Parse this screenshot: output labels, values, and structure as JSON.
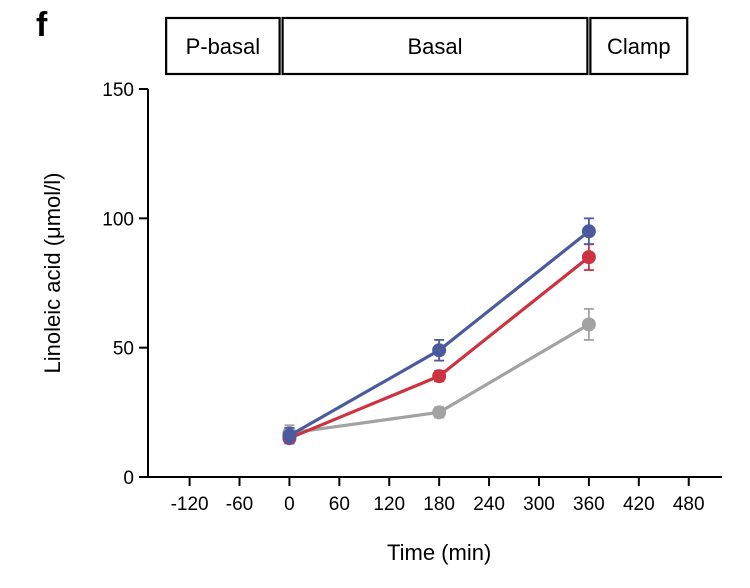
{
  "panel_label": "f",
  "phases": [
    {
      "label": "P-basal",
      "start": -150,
      "end": -10
    },
    {
      "label": "Basal",
      "start": -10,
      "end": 360
    },
    {
      "label": "Clamp",
      "start": 360,
      "end": 480
    }
  ],
  "chart_data": {
    "type": "line",
    "title": "",
    "xlabel": "Time (min)",
    "ylabel": "Linoleic acid (μmol/l)",
    "xlim": [
      -170,
      520
    ],
    "ylim": [
      0,
      150
    ],
    "xticks": [
      -120,
      -60,
      0,
      60,
      120,
      180,
      240,
      300,
      360,
      420,
      480
    ],
    "yticks": [
      0,
      50,
      100,
      150
    ],
    "grid": false,
    "series": [
      {
        "color": "#4a5a9c",
        "x": [
          0,
          180,
          360
        ],
        "y": [
          16,
          49,
          95
        ],
        "err": [
          3,
          4,
          5
        ]
      },
      {
        "color": "#cc3340",
        "x": [
          0,
          180,
          360
        ],
        "y": [
          15,
          39,
          85
        ],
        "err": [
          2,
          2,
          5
        ]
      },
      {
        "color": "#a2a2a2",
        "x": [
          0,
          180,
          360
        ],
        "y": [
          17,
          25,
          59
        ],
        "err": [
          3,
          2,
          6
        ]
      }
    ]
  }
}
